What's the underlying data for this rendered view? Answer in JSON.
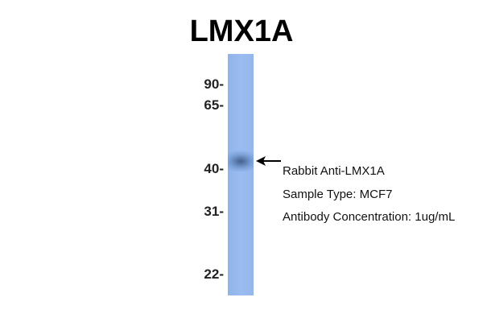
{
  "title": "LMX1A",
  "markers": [
    "90-",
    "65-",
    "40-",
    "31-",
    "22-"
  ],
  "annotations": [
    "Rabbit Anti-LMX1A",
    "Sample Type: MCF7",
    "Antibody Concentration: 1ug/mL"
  ],
  "colors": {
    "lane": "#9bbcf0",
    "band": "#3a5a86"
  }
}
